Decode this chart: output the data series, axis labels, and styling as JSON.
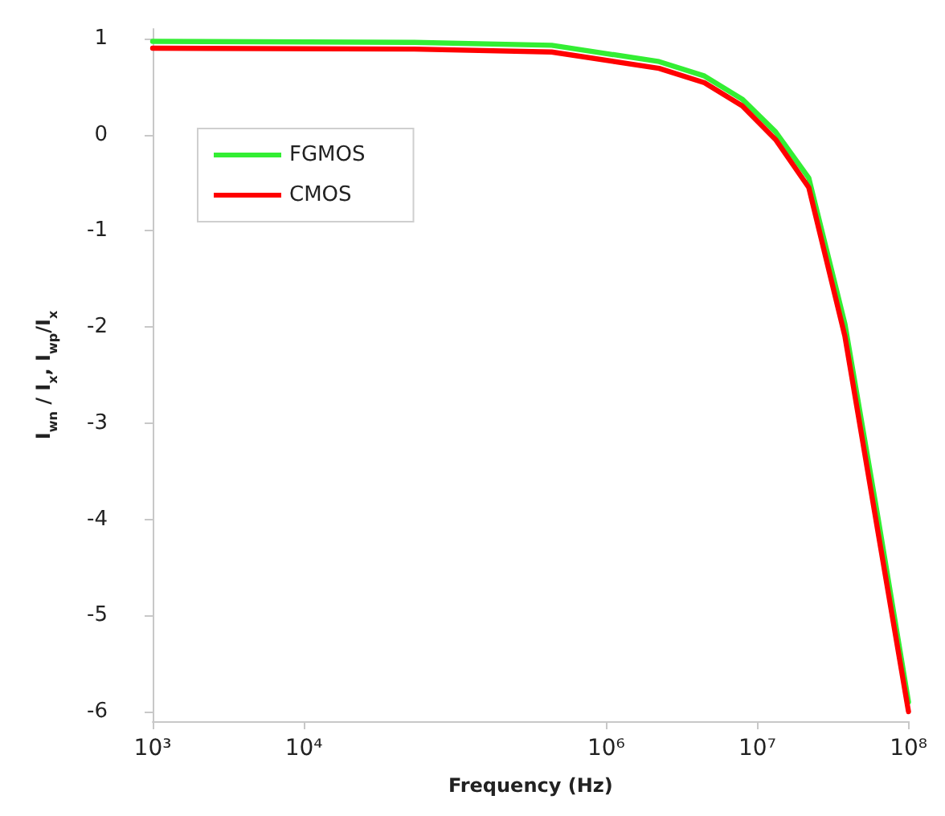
{
  "chart_data": {
    "type": "line",
    "xlabel": "Frequency (Hz)",
    "ylabel": "I$_{wn}$ / I$_{x}$, I$_{wp}$/I$_{x}$",
    "log": "x",
    "xlim": [
      1000,
      100000000
    ],
    "xticks": [
      {
        "value": 1000,
        "label": "10³"
      },
      {
        "value": 10000,
        "label": "10⁴"
      },
      {
        "value": 1000000,
        "label": "10⁶"
      },
      {
        "value": 10000000,
        "label": "10⁷"
      },
      {
        "value": 100000000,
        "label": "10⁸"
      }
    ],
    "ylim": [
      -6.1,
      1.1
    ],
    "yticks": [
      -6,
      -5,
      -4,
      -3,
      -2,
      -1,
      0,
      1
    ],
    "grid": false,
    "legend": "top left",
    "marker": "none",
    "line_style": "solid",
    "series": [
      {
        "name": "FGMOS",
        "color": "#33ee33",
        "x": [
          1000,
          53700,
          436000,
          2240000,
          4470000,
          7940000,
          13200000,
          21900000,
          38000000,
          63100000,
          100000000
        ],
        "values": [
          0.97,
          0.96,
          0.93,
          0.76,
          0.61,
          0.37,
          0.03,
          -0.45,
          -1.97,
          -4.0,
          -5.9
        ]
      },
      {
        "name": "CMOS",
        "color": "#ff0000",
        "x": [
          1000,
          53700,
          436000,
          2240000,
          4470000,
          7940000,
          13200000,
          21900000,
          38000000,
          63100000,
          100000000
        ],
        "values": [
          0.9,
          0.89,
          0.86,
          0.69,
          0.54,
          0.3,
          -0.05,
          -0.55,
          -2.1,
          -4.15,
          -6.0
        ]
      }
    ]
  }
}
